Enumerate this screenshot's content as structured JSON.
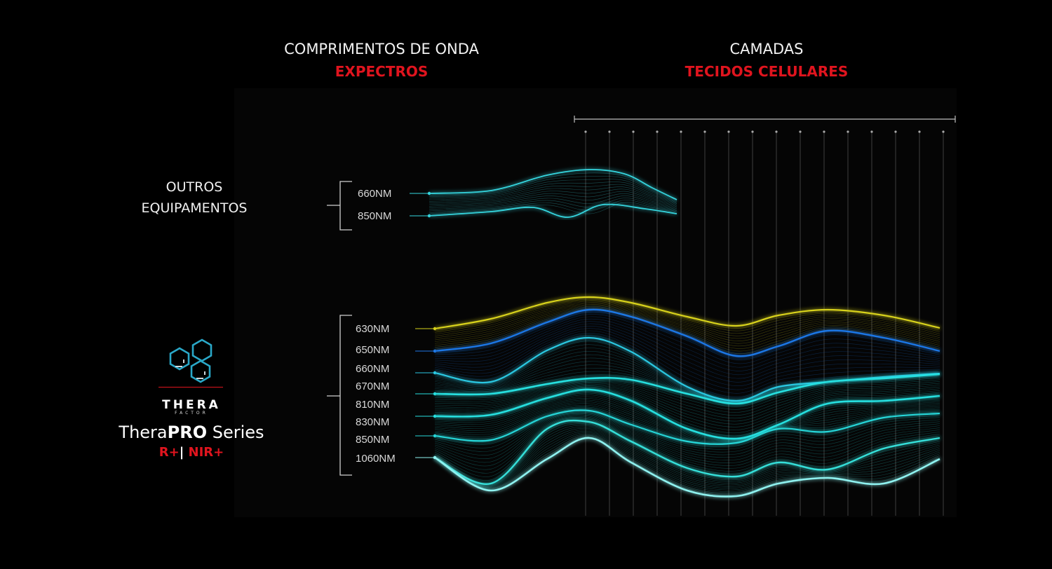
{
  "header_left": {
    "line1": "COMPRIMENTOS DE ONDA",
    "line2": "EXPECTROS"
  },
  "header_right": {
    "line1": "CAMADAS",
    "line2": "TECIDOS CELULARES"
  },
  "groups": {
    "outros": {
      "title_line1": "OUTROS",
      "title_line2": "EQUIPAMENTOS",
      "wavelengths": [
        "660NM",
        "850NM"
      ]
    },
    "therapro": {
      "wavelengths": [
        "630NM",
        "650NM",
        "660NM",
        "670NM",
        "810NM",
        "830NM",
        "850NM",
        "1060NM"
      ],
      "logo_icon": "hexagon-cluster-icon",
      "brand_name": "THERA",
      "brand_sub": "FACTOR",
      "series_prefix": "Thera",
      "series_bold": "PRO",
      "series_suffix": " Series",
      "model_1": "R+",
      "model_sep": "|",
      "model_2": "NIR+"
    }
  },
  "colors": {
    "accent_red": "#e0141e",
    "yellow_wave": "#d8d21a",
    "blue_wave": "#1e78e6",
    "cyan_wave": "#27e0e0",
    "pale_wave": "#8ff2f0"
  }
}
